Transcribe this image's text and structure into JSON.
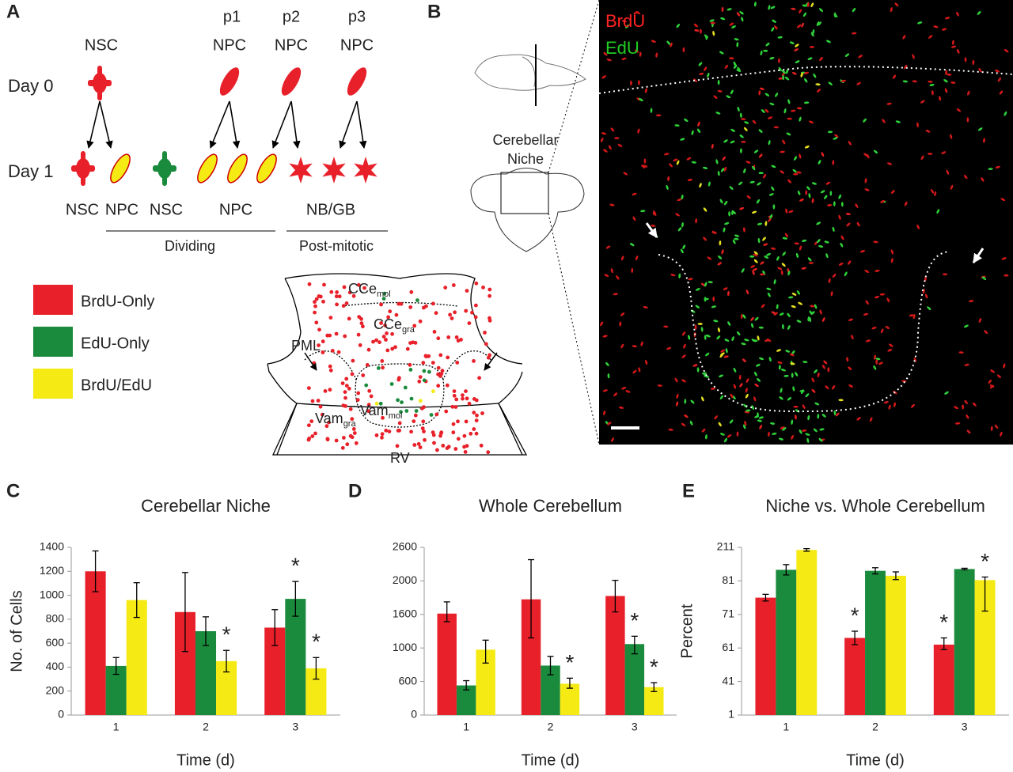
{
  "panels": [
    "A",
    "B",
    "C",
    "D",
    "E"
  ],
  "lineage": {
    "nsc_top": "NSC",
    "passages": [
      "p1",
      "p2",
      "p3"
    ],
    "npc_top": [
      "NPC",
      "NPC",
      "NPC"
    ],
    "days": [
      "Day 0",
      "Day 1"
    ],
    "bottom": [
      "NSC",
      "NPC",
      "NSC",
      "NPC",
      "NB/GB"
    ],
    "groups": [
      "Dividing",
      "Post-mitotic"
    ]
  },
  "niche_map": {
    "labels": [
      {
        "text": "CCe",
        "sub": "mol"
      },
      {
        "text": "CCe",
        "sub": "gra"
      },
      {
        "text": "PML"
      },
      {
        "text": "Vam",
        "sub": "gra"
      },
      {
        "text": "Vam",
        "sub": "mol"
      },
      {
        "text": "RV"
      }
    ]
  },
  "micrograph": {
    "channels": [
      "BrdU",
      "EdU"
    ],
    "inset": [
      "Cerebellar",
      "Niche"
    ]
  },
  "chart_data": [
    {
      "type": "bar",
      "title": "Cerebellar Niche",
      "x_label": "Time (d)",
      "y_label": "No. of Cells",
      "categories": [
        "1",
        "2",
        "3"
      ],
      "ylim": [
        0,
        1400
      ],
      "yticks": [
        0,
        200,
        400,
        600,
        800,
        1000,
        1200,
        1400
      ],
      "series": [
        {
          "name": "BrdU-Only",
          "color": "#e8202a",
          "values": [
            1200,
            860,
            730
          ],
          "errors": [
            170,
            330,
            150
          ]
        },
        {
          "name": "EdU-Only",
          "color": "#1a8a3c",
          "values": [
            410,
            700,
            970
          ],
          "errors": [
            70,
            120,
            145
          ]
        },
        {
          "name": "BrdU/EdU",
          "color": "#f5ea14",
          "values": [
            960,
            450,
            390
          ],
          "errors": [
            145,
            90,
            90
          ]
        }
      ],
      "annotations": [
        {
          "text": "*",
          "series": "EdU-Only",
          "category": "3"
        },
        {
          "text": "*",
          "series": "BrdU/EdU",
          "category": "2"
        },
        {
          "text": "*",
          "series": "BrdU/EdU",
          "category": "3"
        }
      ]
    },
    {
      "type": "bar",
      "title": "Whole Cerebellum",
      "x_label": "Time (d)",
      "categories": [
        "1",
        "2",
        "3"
      ],
      "ylim": [
        0,
        2600
      ],
      "yticks": [
        0,
        600,
        1000,
        1600,
        2000,
        2600
      ],
      "series": [
        {
          "name": "BrdU-Only",
          "color": "#e8202a",
          "values": [
            1610,
            1780,
            1820
          ],
          "errors": [
            140,
            600,
            190
          ]
        },
        {
          "name": "EdU-Only",
          "color": "#1a8a3c",
          "values": [
            530,
            790,
            1070
          ],
          "errors": [
            80,
            110,
            140
          ]
        },
        {
          "name": "BrdU/EdU",
          "color": "#f5ea14",
          "values": [
            980,
            560,
            500
          ],
          "errors": [
            160,
            80,
            80
          ]
        }
      ],
      "annotations": [
        {
          "text": "*",
          "series": "BrdU/EdU",
          "category": "2"
        },
        {
          "text": "*",
          "series": "EdU-Only",
          "category": "3"
        },
        {
          "text": "*",
          "series": "BrdU/EdU",
          "category": "3"
        }
      ]
    },
    {
      "type": "bar",
      "title": "Niche vs. Whole Cerebellum",
      "x_label": "Time (d)",
      "y_label": "Percent",
      "categories": [
        "1",
        "2",
        "3"
      ],
      "ylim": [
        1,
        211
      ],
      "yticks": [
        1,
        41,
        61,
        71,
        81,
        211
      ],
      "series": [
        {
          "name": "BrdU-Only",
          "color": "#e8202a",
          "values": [
            76,
            64,
            62
          ],
          "errors": [
            1,
            2,
            2
          ]
        },
        {
          "name": "EdU-Only",
          "color": "#1a8a3c",
          "values": [
            124,
            120,
            127
          ],
          "errors": [
            20,
            12,
            3
          ]
        },
        {
          "name": "BrdU/EdU",
          "color": "#f5ea14",
          "values": [
            201,
            101,
            84
          ],
          "errors": [
            5,
            15,
            12
          ]
        }
      ],
      "annotations": [
        {
          "text": "*",
          "series": "BrdU-Only",
          "category": "2"
        },
        {
          "text": "*",
          "series": "BrdU-Only",
          "category": "3"
        },
        {
          "text": "*",
          "series": "BrdU/EdU",
          "category": "3"
        }
      ]
    }
  ]
}
